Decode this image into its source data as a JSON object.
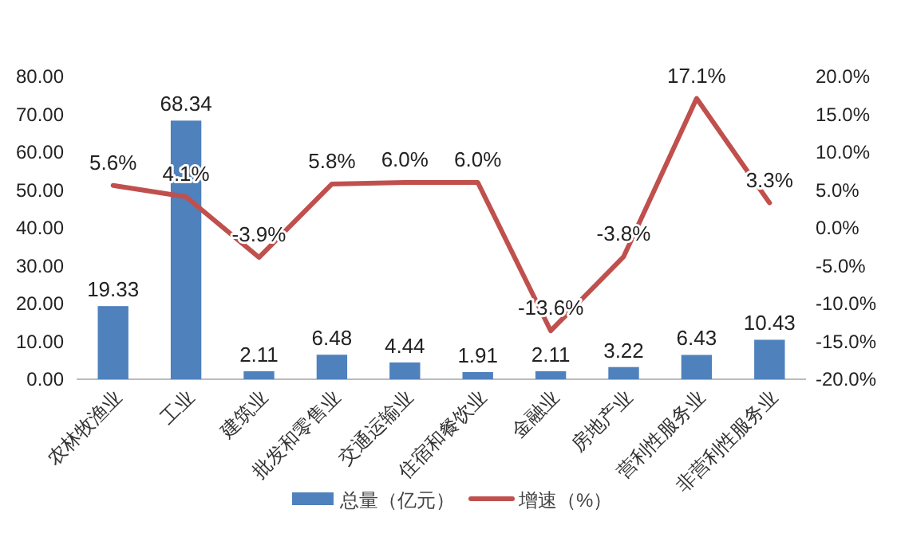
{
  "chart_data": {
    "type": "bar",
    "categories": [
      "农林牧渔业",
      "工业",
      "建筑业",
      "批发和零售业",
      "交通运输业",
      "住宿和餐饮业",
      "金融业",
      "房地产业",
      "营利性服务业",
      "非营利性服务业"
    ],
    "series": [
      {
        "name": "总量（亿元）",
        "color": "#4f81bd",
        "values": [
          19.33,
          68.34,
          2.11,
          6.48,
          4.44,
          1.91,
          2.11,
          3.22,
          6.43,
          10.43
        ],
        "value_labels": [
          "19.33",
          "68.34",
          "2.11",
          "6.48",
          "4.44",
          "1.91",
          "2.11",
          "3.22",
          "6.43",
          "10.43"
        ]
      },
      {
        "name": "增速（%）",
        "type": "line",
        "axis": "y2",
        "color": "#c0504d",
        "values": [
          5.6,
          4.1,
          -3.9,
          5.8,
          6.0,
          6.0,
          -13.6,
          -3.8,
          17.1,
          3.3
        ],
        "value_labels": [
          "5.6%",
          "4.1%",
          "-3.9%",
          "5.8%",
          "6.0%",
          "6.0%",
          "-13.6%",
          "-3.8%",
          "17.1%",
          "3.3%"
        ]
      }
    ],
    "ylim": [
      0,
      80
    ],
    "yticks": [
      {
        "value": 0,
        "label": "0.00"
      },
      {
        "value": 10,
        "label": "10.00"
      },
      {
        "value": 20,
        "label": "20.00"
      },
      {
        "value": 30,
        "label": "30.00"
      },
      {
        "value": 40,
        "label": "40.00"
      },
      {
        "value": 50,
        "label": "50.00"
      },
      {
        "value": 60,
        "label": "60.00"
      },
      {
        "value": 70,
        "label": "70.00"
      },
      {
        "value": 80,
        "label": "80.00"
      }
    ],
    "y2lim": [
      -20,
      20
    ],
    "y2ticks": [
      {
        "value": -20,
        "label": "-20.0%"
      },
      {
        "value": -15,
        "label": "-15.0%"
      },
      {
        "value": -10,
        "label": "-10.0%"
      },
      {
        "value": -5,
        "label": "-5.0%"
      },
      {
        "value": 0,
        "label": "0.0%"
      },
      {
        "value": 5,
        "label": "5.0%"
      },
      {
        "value": 10,
        "label": "10.0%"
      },
      {
        "value": 15,
        "label": "15.0%"
      },
      {
        "value": 20,
        "label": "20.0%"
      }
    ],
    "legend": "bottom",
    "marker": "none",
    "line_style": "solid"
  }
}
